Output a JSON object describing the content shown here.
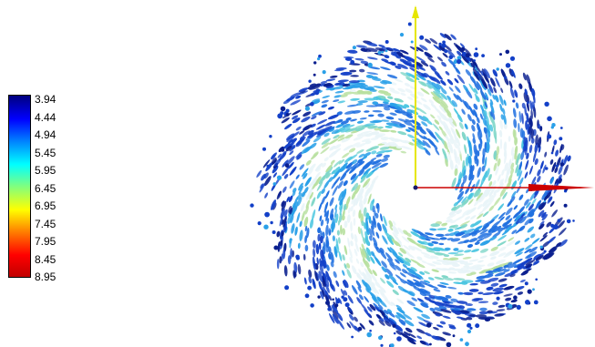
{
  "legend": {
    "labels": [
      "3.94",
      "4.44",
      "4.94",
      "5.45",
      "5.95",
      "6.45",
      "6.95",
      "7.45",
      "7.95",
      "8.45",
      "8.95"
    ],
    "colormap": [
      "#00007f",
      "#0000ff",
      "#0080ff",
      "#00ffff",
      "#7fff80",
      "#ffff00",
      "#ff8000",
      "#ff0000",
      "#c00000"
    ]
  },
  "axes": {
    "x_axis_color": "#cc0000",
    "y_axis_color": "#e6e600"
  },
  "scene": {
    "type": "vector-glyph-vortex",
    "glyph_colors": [
      "#0a1f8f",
      "#1340c8",
      "#1f6fe0",
      "#2aa0e8",
      "#4cc6e0",
      "#7fd6c8",
      "#b8e0a0",
      "#e8f4f8"
    ]
  }
}
